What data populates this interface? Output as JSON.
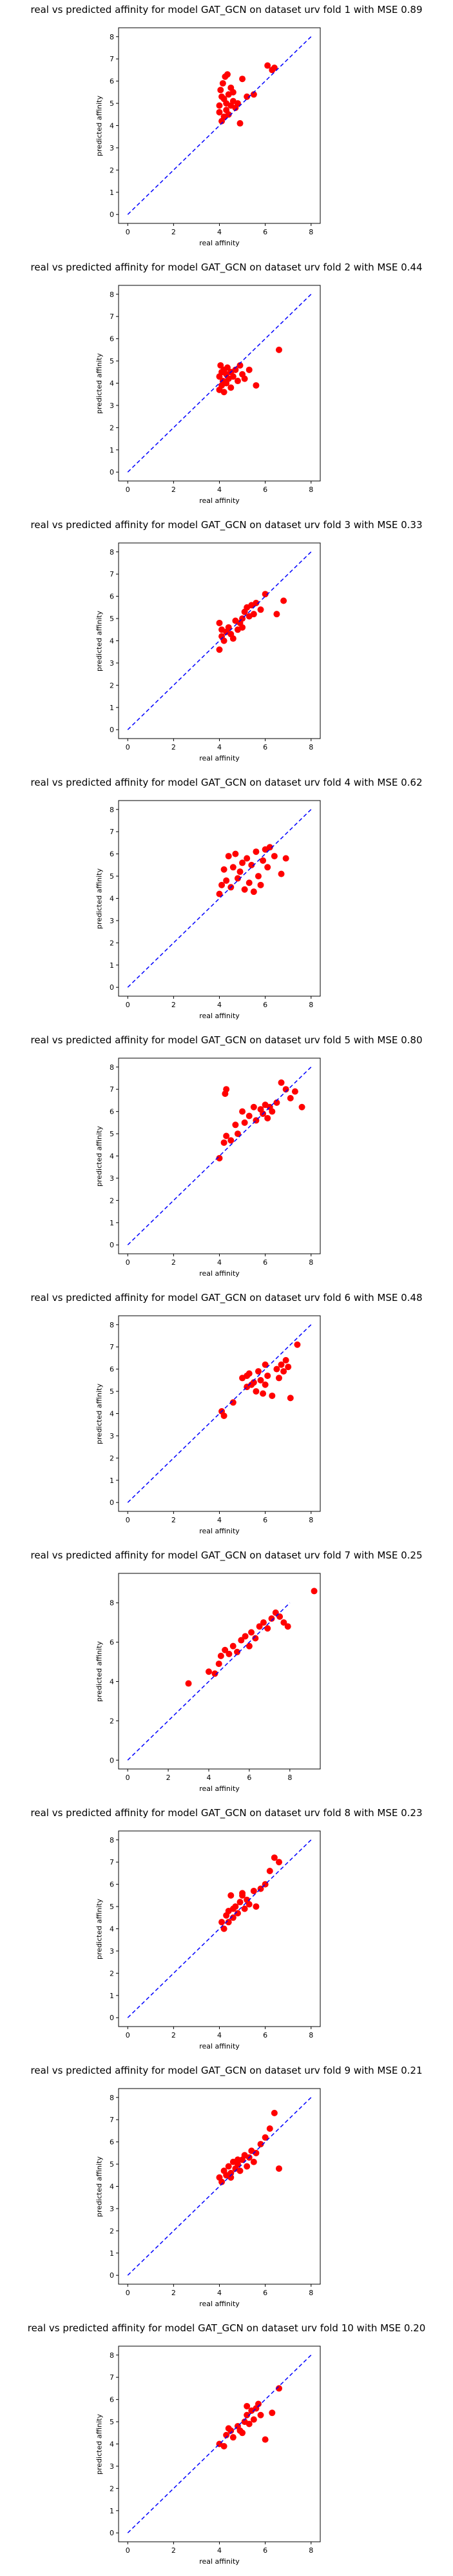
{
  "chart_data": [
    {
      "type": "scatter",
      "title": "real vs predicted affinity for model GAT_GCN on dataset urv fold 1 with MSE 0.89",
      "xlabel": "real affinity",
      "ylabel": "predicted affinity",
      "xlim": [
        -0.4,
        8.4
      ],
      "ylim": [
        -0.4,
        8.4
      ],
      "xticks": [
        0,
        2,
        4,
        6,
        8
      ],
      "yticks": [
        0,
        1,
        2,
        3,
        4,
        5,
        6,
        7,
        8
      ],
      "grid": false,
      "reference_line": {
        "from": [
          0,
          0
        ],
        "to": [
          8,
          8
        ],
        "style": "dashed",
        "color": "#0000ff"
      },
      "point_color": "#ff0000",
      "x": [
        4.0,
        4.0,
        4.05,
        4.1,
        4.1,
        4.15,
        4.2,
        4.2,
        4.25,
        4.3,
        4.3,
        4.35,
        4.4,
        4.4,
        4.5,
        4.5,
        4.6,
        4.6,
        4.7,
        4.8,
        4.9,
        5.0,
        5.2,
        5.5,
        6.1,
        6.3,
        6.4
      ],
      "y": [
        4.6,
        4.9,
        5.6,
        4.2,
        5.3,
        5.9,
        4.4,
        5.2,
        6.2,
        4.7,
        5.0,
        6.3,
        4.5,
        5.4,
        4.9,
        5.7,
        5.1,
        5.5,
        4.8,
        5.0,
        4.1,
        6.1,
        5.3,
        5.4,
        6.7,
        6.5,
        6.6
      ]
    },
    {
      "type": "scatter",
      "title": "real vs predicted affinity for model GAT_GCN on dataset urv fold 2 with MSE 0.44",
      "xlabel": "real affinity",
      "ylabel": "predicted affinity",
      "xlim": [
        -0.4,
        8.4
      ],
      "ylim": [
        -0.4,
        8.4
      ],
      "xticks": [
        0,
        2,
        4,
        6,
        8
      ],
      "yticks": [
        0,
        1,
        2,
        3,
        4,
        5,
        6,
        7,
        8
      ],
      "grid": false,
      "reference_line": {
        "from": [
          0,
          0
        ],
        "to": [
          8,
          8
        ],
        "style": "dashed",
        "color": "#0000ff"
      },
      "point_color": "#ff0000",
      "x": [
        4.0,
        4.0,
        4.05,
        4.1,
        4.1,
        4.15,
        4.2,
        4.2,
        4.3,
        4.3,
        4.35,
        4.4,
        4.5,
        4.5,
        4.6,
        4.7,
        4.8,
        4.9,
        5.0,
        5.1,
        5.3,
        5.6,
        6.6
      ],
      "y": [
        3.7,
        4.3,
        4.8,
        3.9,
        4.5,
        4.1,
        4.6,
        3.6,
        4.4,
        4.0,
        4.7,
        4.2,
        4.5,
        3.8,
        4.3,
        4.6,
        4.1,
        4.8,
        4.4,
        4.2,
        4.6,
        3.9,
        5.5
      ]
    },
    {
      "type": "scatter",
      "title": "real vs predicted affinity for model GAT_GCN on dataset urv fold 3 with MSE 0.33",
      "xlabel": "real affinity",
      "ylabel": "predicted affinity",
      "xlim": [
        -0.4,
        8.4
      ],
      "ylim": [
        -0.4,
        8.4
      ],
      "xticks": [
        0,
        2,
        4,
        6,
        8
      ],
      "yticks": [
        0,
        1,
        2,
        3,
        4,
        5,
        6,
        7,
        8
      ],
      "grid": false,
      "reference_line": {
        "from": [
          0,
          0
        ],
        "to": [
          8,
          8
        ],
        "style": "dashed",
        "color": "#0000ff"
      },
      "point_color": "#ff0000",
      "x": [
        4.0,
        4.0,
        4.1,
        4.1,
        4.2,
        4.3,
        4.4,
        4.5,
        4.6,
        4.7,
        4.8,
        4.9,
        5.0,
        5.0,
        5.1,
        5.2,
        5.3,
        5.4,
        5.5,
        5.6,
        5.8,
        6.0,
        6.5,
        6.8
      ],
      "y": [
        4.8,
        3.6,
        4.2,
        4.5,
        4.0,
        4.4,
        4.6,
        4.3,
        4.1,
        4.9,
        4.5,
        4.8,
        5.0,
        4.6,
        5.3,
        5.5,
        5.1,
        5.6,
        5.2,
        5.7,
        5.4,
        6.1,
        5.2,
        5.8
      ]
    },
    {
      "type": "scatter",
      "title": "real vs predicted affinity for model GAT_GCN on dataset urv fold 4 with MSE 0.62",
      "xlabel": "real affinity",
      "ylabel": "predicted affinity",
      "xlim": [
        -0.4,
        8.4
      ],
      "ylim": [
        -0.4,
        8.4
      ],
      "xticks": [
        0,
        2,
        4,
        6,
        8
      ],
      "yticks": [
        0,
        1,
        2,
        3,
        4,
        5,
        6,
        7,
        8
      ],
      "grid": false,
      "reference_line": {
        "from": [
          0,
          0
        ],
        "to": [
          8,
          8
        ],
        "style": "dashed",
        "color": "#0000ff"
      },
      "point_color": "#ff0000",
      "x": [
        4.0,
        4.1,
        4.2,
        4.3,
        4.4,
        4.5,
        4.6,
        4.7,
        4.8,
        4.9,
        5.0,
        5.1,
        5.2,
        5.3,
        5.4,
        5.5,
        5.6,
        5.7,
        5.8,
        5.9,
        6.0,
        6.1,
        6.2,
        6.4,
        6.7,
        6.9
      ],
      "y": [
        4.2,
        4.6,
        5.3,
        4.8,
        5.9,
        4.5,
        5.4,
        6.0,
        4.9,
        5.2,
        5.6,
        4.4,
        5.8,
        4.7,
        5.5,
        4.3,
        6.1,
        5.0,
        4.6,
        5.7,
        6.2,
        5.4,
        6.3,
        5.9,
        5.1,
        5.8
      ]
    },
    {
      "type": "scatter",
      "title": "real vs predicted affinity for model GAT_GCN on dataset urv fold 5 with MSE 0.80",
      "xlabel": "real affinity",
      "ylabel": "predicted affinity",
      "xlim": [
        -0.4,
        8.4
      ],
      "ylim": [
        -0.4,
        8.4
      ],
      "xticks": [
        0,
        2,
        4,
        6,
        8
      ],
      "yticks": [
        0,
        1,
        2,
        3,
        4,
        5,
        6,
        7,
        8
      ],
      "grid": false,
      "reference_line": {
        "from": [
          0,
          0
        ],
        "to": [
          8,
          8
        ],
        "style": "dashed",
        "color": "#0000ff"
      },
      "point_color": "#ff0000",
      "x": [
        4.0,
        4.2,
        4.3,
        4.5,
        4.7,
        4.8,
        5.0,
        5.1,
        5.3,
        5.5,
        5.6,
        5.8,
        5.9,
        6.0,
        6.1,
        6.2,
        6.3,
        6.5,
        6.7,
        6.9,
        7.1,
        7.3,
        7.6,
        4.3,
        4.25
      ],
      "y": [
        3.9,
        4.6,
        4.9,
        4.7,
        5.4,
        5.0,
        6.0,
        5.5,
        5.8,
        6.2,
        5.6,
        6.1,
        5.9,
        6.3,
        5.7,
        6.2,
        6.0,
        6.4,
        7.3,
        7.0,
        6.6,
        6.9,
        6.2,
        7.0,
        6.8
      ]
    },
    {
      "type": "scatter",
      "title": "real vs predicted affinity for model GAT_GCN on dataset urv fold 6 with MSE 0.48",
      "xlabel": "real affinity",
      "ylabel": "predicted affinity",
      "xlim": [
        -0.4,
        8.4
      ],
      "ylim": [
        -0.4,
        8.4
      ],
      "xticks": [
        0,
        2,
        4,
        6,
        8
      ],
      "yticks": [
        0,
        1,
        2,
        3,
        4,
        5,
        6,
        7,
        8
      ],
      "grid": false,
      "reference_line": {
        "from": [
          0,
          0
        ],
        "to": [
          8,
          8
        ],
        "style": "dashed",
        "color": "#0000ff"
      },
      "point_color": "#ff0000",
      "x": [
        4.1,
        4.2,
        4.6,
        5.0,
        5.2,
        5.3,
        5.5,
        5.6,
        5.7,
        5.8,
        5.9,
        6.0,
        6.1,
        6.3,
        6.5,
        6.6,
        6.7,
        6.8,
        6.9,
        7.0,
        7.1,
        7.4,
        6.0,
        5.4,
        5.2
      ],
      "y": [
        4.1,
        3.9,
        4.5,
        5.6,
        5.2,
        5.8,
        5.4,
        5.0,
        5.9,
        5.5,
        4.9,
        5.3,
        5.7,
        4.8,
        6.0,
        5.6,
        6.2,
        5.9,
        6.4,
        6.1,
        4.7,
        7.1,
        6.2,
        5.3,
        5.7
      ]
    },
    {
      "type": "scatter",
      "title": "real vs predicted affinity for model GAT_GCN on dataset urv fold 7 with MSE 0.25",
      "xlabel": "real affinity",
      "ylabel": "predicted affinity",
      "xlim": [
        -0.45,
        9.5
      ],
      "ylim": [
        -0.45,
        9.5
      ],
      "xticks": [
        0,
        2,
        4,
        6,
        8
      ],
      "yticks": [
        0,
        2,
        4,
        6,
        8
      ],
      "grid": false,
      "reference_line": {
        "from": [
          0,
          0
        ],
        "to": [
          8,
          8
        ],
        "style": "dashed",
        "color": "#0000ff"
      },
      "point_color": "#ff0000",
      "x": [
        3.0,
        4.0,
        4.3,
        4.5,
        4.6,
        4.8,
        5.0,
        5.2,
        5.4,
        5.6,
        5.8,
        6.0,
        6.1,
        6.3,
        6.5,
        6.7,
        6.9,
        7.1,
        7.3,
        7.5,
        7.7,
        7.9,
        9.2
      ],
      "y": [
        3.9,
        4.5,
        4.4,
        4.9,
        5.3,
        5.6,
        5.4,
        5.8,
        5.5,
        6.1,
        6.3,
        5.8,
        6.5,
        6.2,
        6.8,
        7.0,
        6.7,
        7.2,
        7.5,
        7.3,
        7.0,
        6.8,
        8.6
      ]
    },
    {
      "type": "scatter",
      "title": "real vs predicted affinity for model GAT_GCN on dataset urv fold 8 with MSE 0.23",
      "xlabel": "real affinity",
      "ylabel": "predicted affinity",
      "xlim": [
        -0.4,
        8.4
      ],
      "ylim": [
        -0.4,
        8.4
      ],
      "xticks": [
        0,
        2,
        4,
        6,
        8
      ],
      "yticks": [
        0,
        1,
        2,
        3,
        4,
        5,
        6,
        7,
        8
      ],
      "grid": false,
      "reference_line": {
        "from": [
          0,
          0
        ],
        "to": [
          8,
          8
        ],
        "style": "dashed",
        "color": "#0000ff"
      },
      "point_color": "#ff0000",
      "x": [
        4.1,
        4.2,
        4.3,
        4.4,
        4.5,
        4.6,
        4.7,
        4.8,
        4.9,
        5.0,
        5.1,
        5.2,
        5.3,
        5.5,
        5.6,
        5.8,
        6.0,
        6.2,
        6.4,
        6.6,
        4.4,
        4.6,
        5.0
      ],
      "y": [
        4.3,
        4.0,
        4.6,
        4.8,
        5.5,
        4.5,
        5.0,
        4.7,
        5.2,
        5.6,
        4.9,
        5.3,
        5.1,
        5.7,
        5.0,
        5.8,
        6.0,
        6.6,
        7.2,
        7.0,
        4.3,
        4.9,
        5.5
      ]
    },
    {
      "type": "scatter",
      "title": "real vs predicted affinity for model GAT_GCN on dataset urv fold 9 with MSE 0.21",
      "xlabel": "real affinity",
      "ylabel": "predicted affinity",
      "xlim": [
        -0.4,
        8.4
      ],
      "ylim": [
        -0.4,
        8.4
      ],
      "xticks": [
        0,
        2,
        4,
        6,
        8
      ],
      "yticks": [
        0,
        1,
        2,
        3,
        4,
        5,
        6,
        7,
        8
      ],
      "grid": false,
      "reference_line": {
        "from": [
          0,
          0
        ],
        "to": [
          8,
          8
        ],
        "style": "dashed",
        "color": "#0000ff"
      },
      "point_color": "#ff0000",
      "x": [
        4.0,
        4.1,
        4.2,
        4.3,
        4.4,
        4.5,
        4.6,
        4.7,
        4.8,
        4.9,
        5.0,
        5.1,
        5.2,
        5.3,
        5.4,
        5.5,
        5.6,
        5.8,
        6.0,
        6.2,
        6.4,
        6.6,
        4.5,
        4.8
      ],
      "y": [
        4.4,
        4.2,
        4.7,
        4.5,
        4.9,
        4.6,
        5.1,
        4.8,
        5.0,
        4.7,
        5.2,
        5.4,
        4.9,
        5.3,
        5.6,
        5.1,
        5.5,
        5.9,
        6.2,
        6.6,
        7.3,
        4.8,
        4.4,
        5.2
      ]
    },
    {
      "type": "scatter",
      "title": "real vs predicted affinity for model GAT_GCN on dataset urv fold 10 with MSE 0.20",
      "xlabel": "real affinity",
      "ylabel": "predicted affinity",
      "xlim": [
        -0.4,
        8.4
      ],
      "ylim": [
        -0.4,
        8.4
      ],
      "xticks": [
        0,
        2,
        4,
        6,
        8
      ],
      "yticks": [
        0,
        1,
        2,
        3,
        4,
        5,
        6,
        7,
        8
      ],
      "grid": false,
      "reference_line": {
        "from": [
          0,
          0
        ],
        "to": [
          8,
          8
        ],
        "style": "dashed",
        "color": "#0000ff"
      },
      "point_color": "#ff0000",
      "x": [
        4.0,
        4.2,
        4.3,
        4.5,
        4.6,
        4.8,
        4.9,
        5.0,
        5.1,
        5.2,
        5.3,
        5.4,
        5.5,
        5.6,
        5.8,
        6.0,
        6.3,
        6.6,
        4.4,
        5.7,
        5.2
      ],
      "y": [
        4.0,
        3.9,
        4.4,
        4.6,
        4.3,
        4.8,
        4.6,
        4.5,
        5.0,
        5.3,
        4.9,
        5.5,
        5.1,
        5.6,
        5.3,
        4.2,
        5.4,
        6.5,
        4.7,
        5.8,
        5.7
      ]
    }
  ]
}
